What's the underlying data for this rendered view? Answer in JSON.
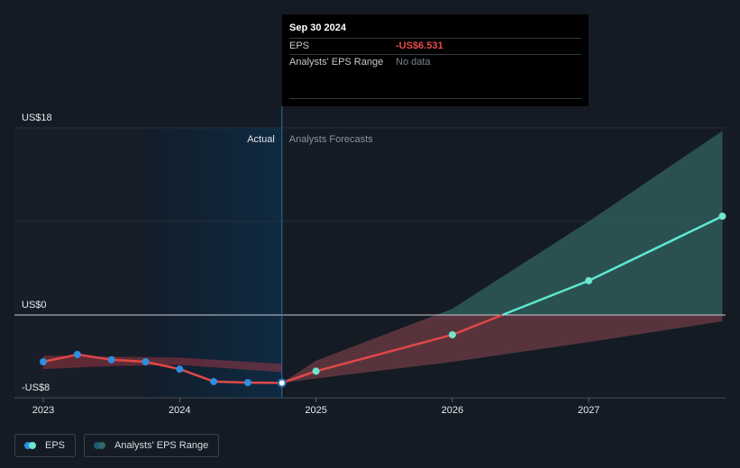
{
  "tooltip": {
    "date": "Sep 30 2024",
    "rows": [
      {
        "label": "EPS",
        "value": "-US$6.531"
      },
      {
        "label": "Analysts' EPS Range",
        "value": "No data"
      }
    ]
  },
  "legend": {
    "items": [
      {
        "label": "EPS"
      },
      {
        "label": "Analysts' EPS Range"
      }
    ]
  },
  "colors": {
    "background": "#151b24",
    "actual_line": "#e04848",
    "forecast_line": "#5ee8d0",
    "actual_dot": "#2d8fe0",
    "forecast_dot": "#6fe6cf",
    "forecast_range": "#2e5a58",
    "actual_range": "#b83a48",
    "highlight": "#0f2a42"
  },
  "chart_data": {
    "type": "line",
    "section_labels": {
      "actual": "Actual",
      "forecast": "Analysts Forecasts"
    },
    "y_ticks": [
      {
        "value": 18,
        "label": "US$18"
      },
      {
        "value": 0,
        "label": "US$0"
      },
      {
        "value": -8,
        "label": "-US$8"
      }
    ],
    "ylim": [
      -8,
      18
    ],
    "x_ticks": [
      {
        "value": 2023.0,
        "label": "2023"
      },
      {
        "value": 2024.0,
        "label": "2024"
      },
      {
        "value": 2025.0,
        "label": "2025"
      },
      {
        "value": 2026.0,
        "label": "2026"
      },
      {
        "value": 2027.0,
        "label": "2027"
      }
    ],
    "xlim": [
      2022.9,
      2027.98
    ],
    "highlight_range": [
      2023.75,
      2024.75
    ],
    "divider_x": 2024.75,
    "series": [
      {
        "name": "EPS",
        "role": "actual",
        "points": [
          {
            "x": 2023.0,
            "y": -4.5
          },
          {
            "x": 2023.25,
            "y": -3.8
          },
          {
            "x": 2023.5,
            "y": -4.3
          },
          {
            "x": 2023.75,
            "y": -4.5
          },
          {
            "x": 2024.0,
            "y": -5.2
          },
          {
            "x": 2024.25,
            "y": -6.4
          },
          {
            "x": 2024.5,
            "y": -6.5
          },
          {
            "x": 2024.75,
            "y": -6.531
          }
        ]
      },
      {
        "name": "EPS",
        "role": "forecast",
        "points": [
          {
            "x": 2024.75,
            "y": -6.531
          },
          {
            "x": 2025.0,
            "y": -5.4
          },
          {
            "x": 2026.0,
            "y": -1.9
          },
          {
            "x": 2027.0,
            "y": 3.3
          },
          {
            "x": 2027.98,
            "y": 9.5
          }
        ]
      }
    ],
    "actual_range": {
      "x": [
        2023.0,
        2023.5,
        2024.0,
        2024.75
      ],
      "low": [
        -5.2,
        -4.9,
        -4.8,
        -5.5
      ],
      "high": [
        -3.9,
        -4.0,
        -4.1,
        -4.7
      ]
    },
    "forecast_range": {
      "x": [
        2024.75,
        2025.0,
        2026.0,
        2027.0,
        2027.98
      ],
      "low": [
        -6.531,
        -6.1,
        -4.5,
        -2.6,
        -0.6
      ],
      "high": [
        -6.531,
        -4.4,
        0.6,
        9.0,
        17.7
      ]
    }
  }
}
